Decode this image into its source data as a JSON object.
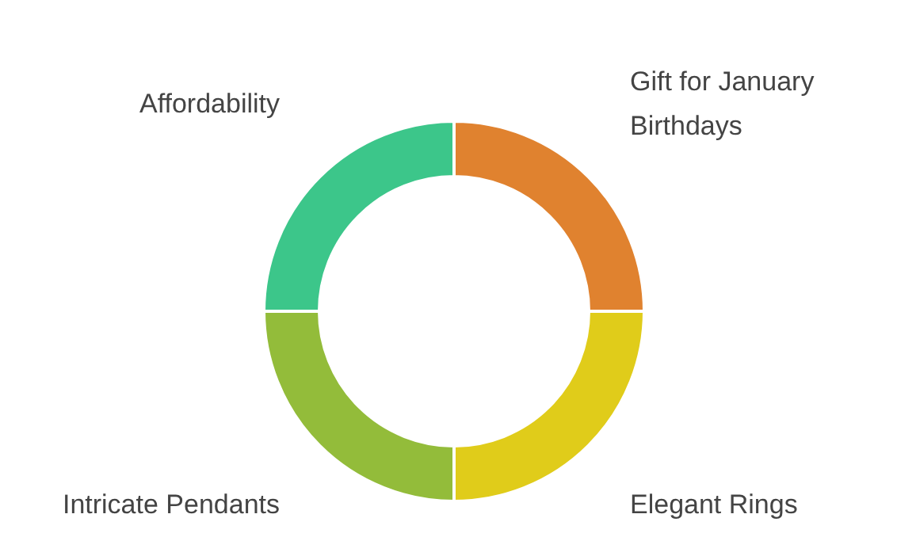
{
  "chart_data": {
    "type": "donut",
    "categories": [
      "Gift for January Birthdays",
      "Elegant Rings",
      "Intricate Pendants",
      "Affordability"
    ],
    "values": [
      25,
      25,
      25,
      25
    ],
    "colors": [
      "#e0822f",
      "#e0cc1a",
      "#93bc3a",
      "#3cc68a"
    ]
  }
}
